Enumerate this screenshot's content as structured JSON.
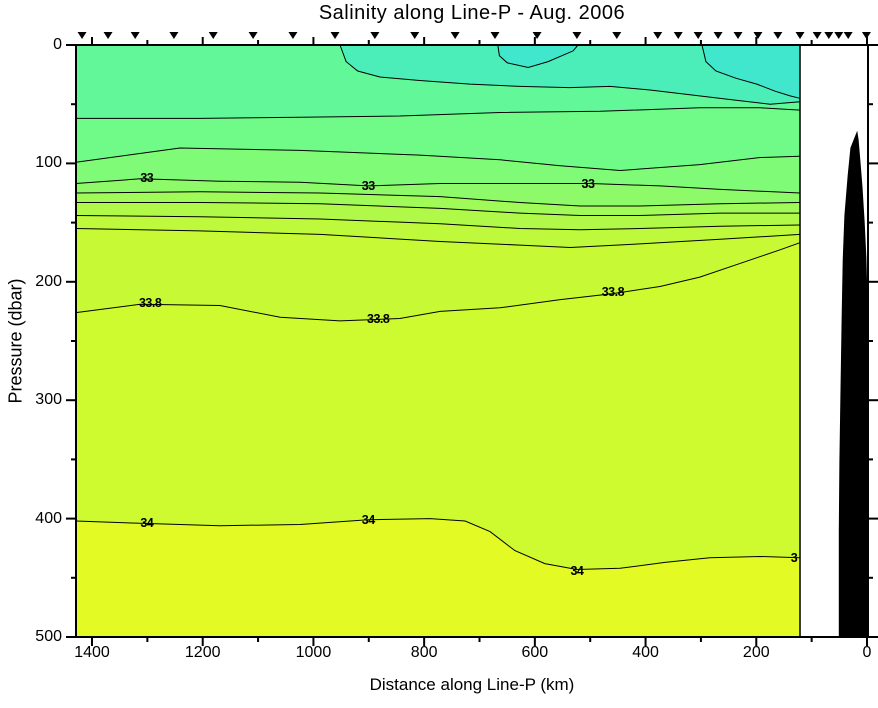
{
  "chart_data": {
    "type": "contour",
    "title": "Salinity along Line-P - Aug. 2006",
    "xlabel": "Distance along Line-P (km)",
    "ylabel": "Pressure (dbar)",
    "x_axis": {
      "unit": "km",
      "reversed": true,
      "plot_range": [
        1429,
        -2
      ],
      "data_extent": [
        1429,
        121
      ],
      "major_ticks": [
        1400,
        1200,
        1000,
        800,
        600,
        400,
        200,
        0
      ],
      "minor_ticks": [
        1300,
        1100,
        900,
        700,
        500,
        300,
        100
      ]
    },
    "y_axis": {
      "unit": "dbar",
      "range": [
        0,
        500
      ],
      "major_ticks": [
        0,
        100,
        200,
        300,
        400,
        500
      ],
      "minor_ticks": [
        50,
        150,
        250,
        350,
        450
      ]
    },
    "station_markers_km": [
      1418,
      1371,
      1322,
      1252,
      1181,
      1109,
      1037,
      961,
      889,
      817,
      744,
      672,
      596,
      524,
      452,
      378,
      341,
      305,
      269,
      233,
      197,
      161,
      121,
      90,
      69,
      51,
      34,
      1
    ],
    "contours": {
      "c326": [
        [
          1429,
          62
        ],
        [
          1205,
          62
        ],
        [
          1024,
          61
        ],
        [
          844,
          60
        ],
        [
          663,
          57
        ],
        [
          482,
          56
        ],
        [
          302,
          53
        ],
        [
          193,
          53
        ],
        [
          121,
          55
        ]
      ],
      "c328": [
        [
          1429,
          99
        ],
        [
          1241,
          87
        ],
        [
          1024,
          89
        ],
        [
          808,
          93
        ],
        [
          663,
          97
        ],
        [
          554,
          102
        ],
        [
          446,
          106
        ],
        [
          302,
          101
        ],
        [
          193,
          95
        ],
        [
          121,
          94
        ]
      ],
      "c33": [
        [
          1429,
          117
        ],
        [
          1313,
          113
        ],
        [
          1169,
          115
        ],
        [
          1024,
          116
        ],
        [
          901,
          119
        ],
        [
          771,
          117
        ],
        [
          627,
          117
        ],
        [
          500,
          117
        ],
        [
          374,
          119
        ],
        [
          265,
          122
        ],
        [
          121,
          125
        ]
      ],
      "c332": [
        [
          1429,
          125
        ],
        [
          1205,
          124
        ],
        [
          988,
          125
        ],
        [
          771,
          128
        ],
        [
          627,
          133
        ],
        [
          518,
          136
        ],
        [
          410,
          136
        ],
        [
          265,
          134
        ],
        [
          121,
          133
        ]
      ],
      "c334": [
        [
          1429,
          133
        ],
        [
          1205,
          133
        ],
        [
          988,
          134
        ],
        [
          771,
          138
        ],
        [
          627,
          142
        ],
        [
          518,
          144
        ],
        [
          410,
          144
        ],
        [
          265,
          142
        ],
        [
          121,
          142
        ]
      ],
      "c336": [
        [
          1429,
          144
        ],
        [
          1205,
          145
        ],
        [
          988,
          147
        ],
        [
          771,
          151
        ],
        [
          627,
          155
        ],
        [
          518,
          156
        ],
        [
          410,
          155
        ],
        [
          265,
          153
        ],
        [
          121,
          152
        ]
      ],
      "c337": [
        [
          1429,
          155
        ],
        [
          1205,
          157
        ],
        [
          988,
          160
        ],
        [
          771,
          166
        ],
        [
          627,
          169
        ],
        [
          536,
          171
        ],
        [
          410,
          168
        ],
        [
          265,
          164
        ],
        [
          121,
          160
        ]
      ],
      "c338": [
        [
          1429,
          226
        ],
        [
          1313,
          219
        ],
        [
          1169,
          220
        ],
        [
          1060,
          230
        ],
        [
          952,
          233
        ],
        [
          844,
          231
        ],
        [
          771,
          225
        ],
        [
          663,
          222
        ],
        [
          554,
          215
        ],
        [
          459,
          210
        ],
        [
          374,
          204
        ],
        [
          302,
          196
        ],
        [
          220,
          183
        ],
        [
          157,
          173
        ],
        [
          121,
          167
        ]
      ],
      "c34": [
        [
          1429,
          402
        ],
        [
          1313,
          404
        ],
        [
          1169,
          406
        ],
        [
          1024,
          405
        ],
        [
          901,
          401
        ],
        [
          789,
          400
        ],
        [
          726,
          402
        ],
        [
          681,
          411
        ],
        [
          636,
          427
        ],
        [
          582,
          438
        ],
        [
          524,
          443
        ],
        [
          446,
          442
        ],
        [
          365,
          437
        ],
        [
          284,
          433
        ],
        [
          193,
          432
        ],
        [
          121,
          433
        ]
      ],
      "slope": [
        [
          952,
          0
        ],
        [
          941,
          14
        ],
        [
          920,
          22
        ],
        [
          880,
          27
        ],
        [
          808,
          30
        ],
        [
          717,
          33
        ],
        [
          627,
          35
        ],
        [
          537,
          36
        ],
        [
          464,
          35
        ],
        [
          392,
          38
        ],
        [
          320,
          42
        ],
        [
          248,
          46
        ],
        [
          175,
          50
        ],
        [
          121,
          48
        ]
      ],
      "pocket": [
        [
          667,
          0
        ],
        [
          664,
          9
        ],
        [
          650,
          15
        ],
        [
          612,
          19
        ],
        [
          576,
          14
        ],
        [
          531,
          5
        ],
        [
          522,
          0
        ]
      ],
      "corner": [
        [
          298,
          0
        ],
        [
          291,
          14
        ],
        [
          273,
          22
        ],
        [
          237,
          28
        ],
        [
          199,
          33
        ],
        [
          166,
          39
        ],
        [
          139,
          43
        ],
        [
          121,
          45
        ]
      ]
    },
    "band_fills": [
      {
        "between": [
          "surface",
          "c326"
        ],
        "color": "#62F899"
      },
      {
        "between": [
          "c326",
          "c328"
        ],
        "color": "#70FB88"
      },
      {
        "between": [
          "c328",
          "c33"
        ],
        "color": "#80FB77"
      },
      {
        "between": [
          "c33",
          "c332"
        ],
        "color": "#8FFA69"
      },
      {
        "between": [
          "c332",
          "c334"
        ],
        "color": "#A0FA58"
      },
      {
        "between": [
          "c334",
          "c336"
        ],
        "color": "#B0F948"
      },
      {
        "between": [
          "c336",
          "c337"
        ],
        "color": "#BEF93C"
      },
      {
        "between": [
          "c337",
          "c338"
        ],
        "color": "#C7FA34"
      },
      {
        "between": [
          "c338",
          "c34"
        ],
        "color": "#CDFB2F"
      },
      {
        "between": [
          "c34",
          "bottom"
        ],
        "color": "#E4FA24"
      }
    ],
    "overlay_fills": [
      {
        "contour": "slope",
        "color": "#4BEEB9"
      },
      {
        "contour": "corner",
        "color": "#40E7CD"
      },
      {
        "contour": "pocket",
        "color": "#40E7CD"
      }
    ],
    "contour_labels": [
      {
        "text": "33",
        "km": 1301,
        "dbar": 112
      },
      {
        "text": "33",
        "km": 901,
        "dbar": 119
      },
      {
        "text": "33",
        "km": 504,
        "dbar": 117
      },
      {
        "text": "33.8",
        "km": 1295,
        "dbar": 218
      },
      {
        "text": "33.8",
        "km": 883,
        "dbar": 231
      },
      {
        "text": "33.8",
        "km": 459,
        "dbar": 209
      },
      {
        "text": "34",
        "km": 1301,
        "dbar": 404
      },
      {
        "text": "34",
        "km": 901,
        "dbar": 401
      },
      {
        "text": "34",
        "km": 524,
        "dbar": 444
      },
      {
        "text": "3",
        "km": 132,
        "dbar": 433
      }
    ],
    "land_mask_km_dbar": [
      [
        18,
        74
      ],
      [
        29,
        87
      ],
      [
        34,
        110
      ],
      [
        40,
        144
      ],
      [
        43,
        182
      ],
      [
        45,
        232
      ],
      [
        47,
        291
      ],
      [
        49,
        351
      ],
      [
        50,
        410
      ],
      [
        50,
        500
      ],
      [
        -2,
        500
      ],
      [
        -2,
        250
      ],
      [
        0,
        215
      ],
      [
        2,
        180
      ],
      [
        5,
        150
      ],
      [
        9,
        120
      ],
      [
        13,
        97
      ],
      [
        16,
        80
      ]
    ],
    "colors": {
      "land": "#000000",
      "line": "#000000",
      "background": "#FFFFFF"
    }
  }
}
